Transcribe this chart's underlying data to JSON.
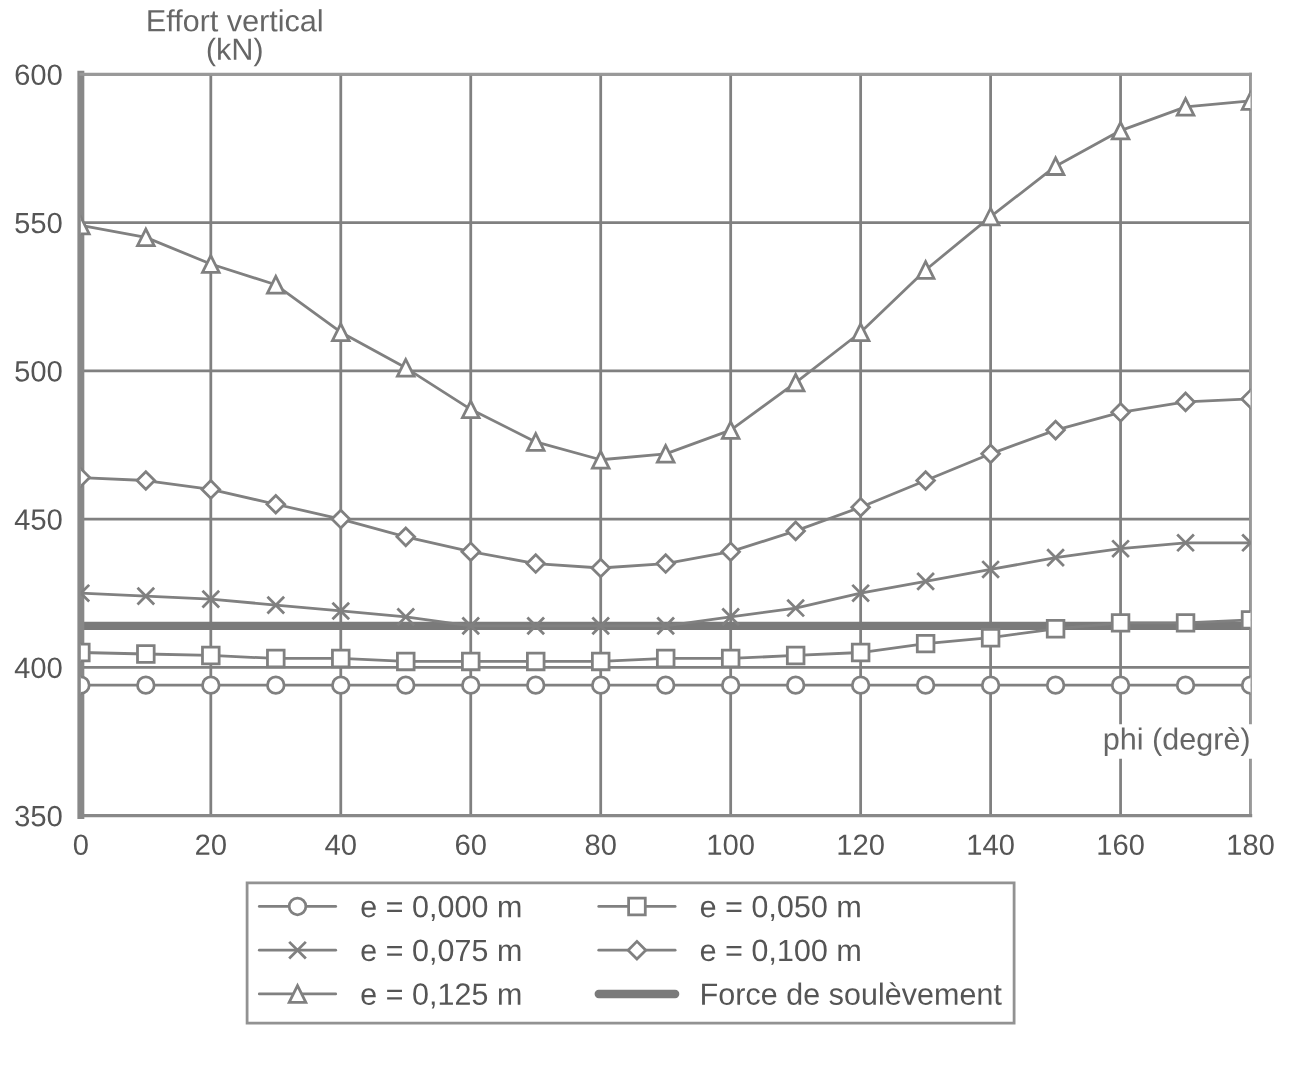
{
  "chart_data": {
    "type": "line",
    "xlabel": "phi (degrè)",
    "ylabel": "Effort vertical\n(kN)",
    "x": [
      0,
      10,
      20,
      30,
      40,
      50,
      60,
      70,
      80,
      90,
      100,
      110,
      120,
      130,
      140,
      150,
      160,
      170,
      180
    ],
    "xlim": [
      0,
      180
    ],
    "xticks": [
      0,
      20,
      40,
      60,
      80,
      100,
      120,
      140,
      160,
      180
    ],
    "ylim": [
      350,
      600
    ],
    "yticks": [
      350,
      400,
      450,
      500,
      550,
      600
    ],
    "grid": true,
    "legend": "bottom",
    "line_style": "solid",
    "series": [
      {
        "name": "e = 0,000 m",
        "color": "#808080",
        "marker": "circle",
        "values": [
          394,
          394,
          394,
          394,
          394,
          394,
          394,
          394,
          394,
          394,
          394,
          394,
          394,
          394,
          394,
          394,
          394,
          394,
          394
        ]
      },
      {
        "name": "e = 0,050 m",
        "color": "#808080",
        "marker": "square",
        "values": [
          405,
          404.5,
          404,
          403,
          403,
          402,
          402,
          402,
          402,
          403,
          403,
          404,
          405,
          408,
          410,
          413,
          415,
          415,
          416
        ]
      },
      {
        "name": "e = 0,075 m",
        "color": "#808080",
        "marker": "cross",
        "values": [
          425,
          424,
          423,
          421,
          419,
          417,
          414,
          414,
          414,
          414,
          417,
          420,
          425,
          429,
          433,
          437,
          440,
          442,
          442
        ]
      },
      {
        "name": "e = 0,100 m",
        "color": "#808080",
        "marker": "diamond",
        "values": [
          464,
          463,
          460,
          455,
          450,
          444,
          439,
          435,
          433.5,
          435,
          439,
          446,
          454,
          463,
          472,
          480,
          486,
          489.5,
          490.5
        ]
      },
      {
        "name": "e = 0,125 m",
        "color": "#808080",
        "marker": "triangle",
        "values": [
          549,
          545,
          536,
          529,
          513,
          501,
          487,
          476,
          470,
          472,
          480,
          496,
          513,
          534,
          552,
          569,
          581,
          589,
          591
        ]
      },
      {
        "name": "Force de soulèvement",
        "color": "#7a7a7a",
        "marker": "none",
        "values": [
          414,
          414,
          414,
          414,
          414,
          414,
          414,
          414,
          414,
          414,
          414,
          414,
          414,
          414,
          414,
          414,
          414,
          414,
          414
        ]
      }
    ]
  }
}
